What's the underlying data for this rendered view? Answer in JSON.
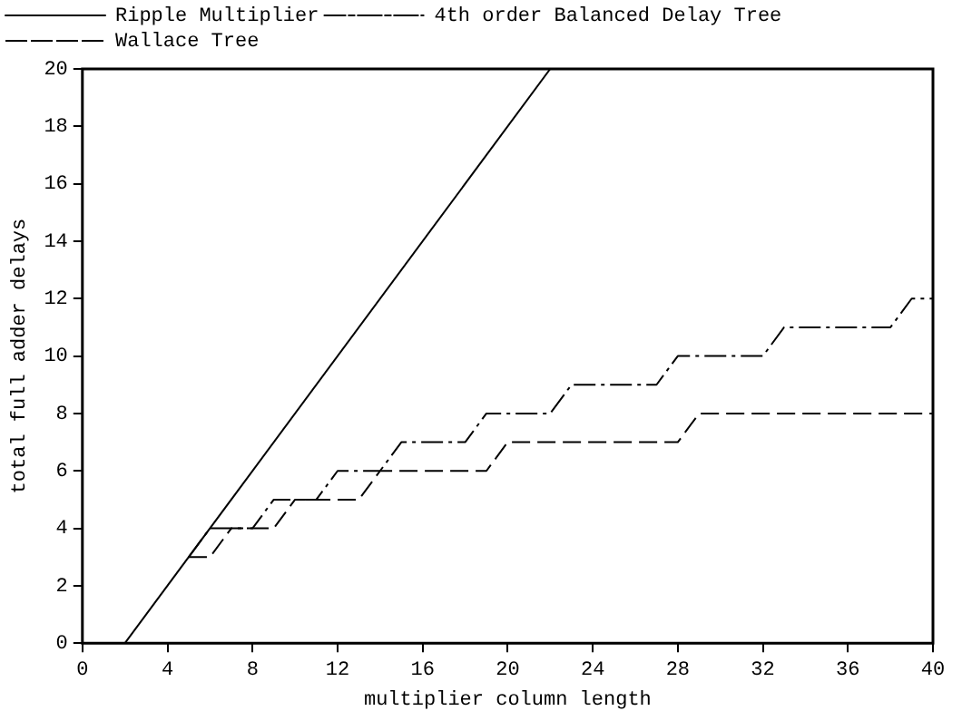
{
  "chart_data": {
    "type": "line",
    "xlabel": "multiplier column length",
    "ylabel": "total full adder delays",
    "xlim": [
      0,
      40
    ],
    "xticks": [
      0,
      4,
      8,
      12,
      16,
      20,
      24,
      28,
      32,
      36,
      40
    ],
    "ylim": [
      0,
      20
    ],
    "yticks": [
      0,
      2,
      4,
      6,
      8,
      10,
      12,
      14,
      16,
      18,
      20
    ],
    "grid": false,
    "legend": "top left",
    "marker": "none",
    "series": [
      {
        "name": "Ripple Multiplier",
        "color": "#000000",
        "line_style": "solid",
        "x": [
          2,
          22
        ],
        "values": [
          0,
          20
        ]
      },
      {
        "name": "4th order Balanced Delay Tree",
        "color": "#000000",
        "line_style": "dashdot",
        "x": [
          5,
          6,
          8,
          9,
          11,
          12,
          14,
          15,
          18,
          19,
          22,
          23,
          27,
          28,
          32,
          33,
          38,
          39,
          40
        ],
        "values": [
          3,
          4,
          4,
          5,
          5,
          6,
          6,
          7,
          7,
          8,
          8,
          9,
          9,
          10,
          10,
          11,
          11,
          12,
          12
        ]
      },
      {
        "name": "Wallace Tree",
        "color": "#000000",
        "line_style": "dashed",
        "x": [
          5,
          6,
          7,
          9,
          10,
          13,
          14,
          19,
          20,
          28,
          29,
          40
        ],
        "values": [
          3,
          3,
          4,
          4,
          5,
          5,
          6,
          6,
          7,
          7,
          8,
          8
        ]
      }
    ]
  }
}
